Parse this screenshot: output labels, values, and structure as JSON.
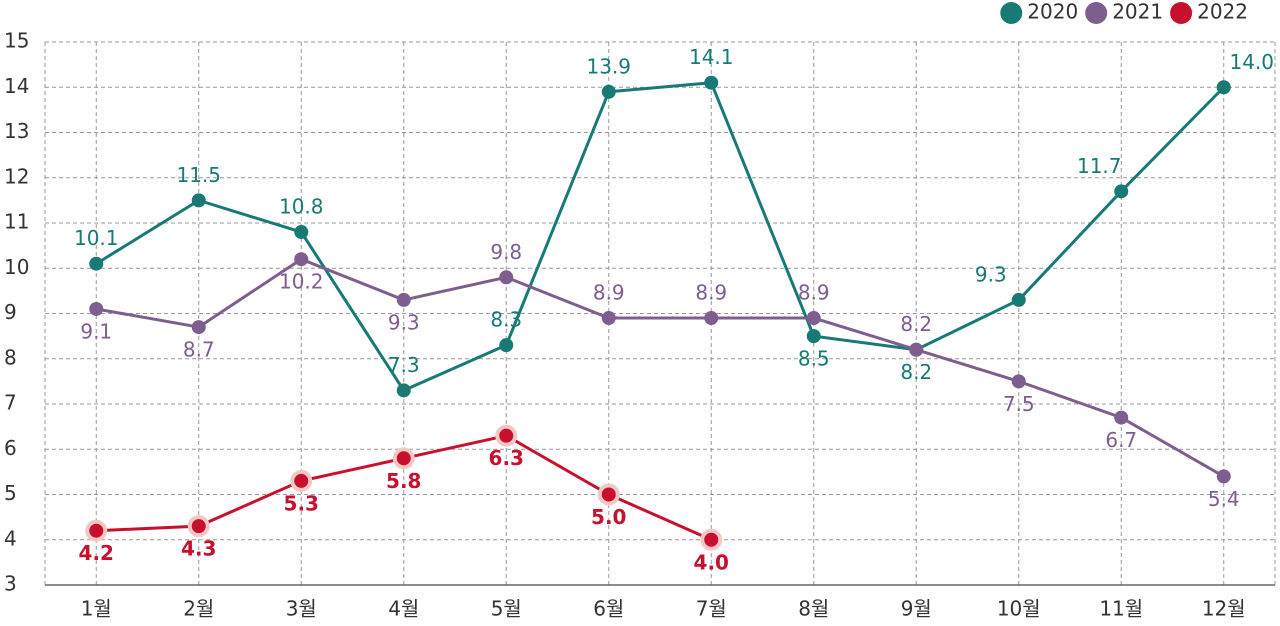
{
  "chart_data": {
    "type": "line",
    "categories": [
      "1월",
      "2월",
      "3월",
      "4월",
      "5월",
      "6월",
      "7월",
      "8월",
      "9월",
      "10월",
      "11월",
      "12월"
    ],
    "series": [
      {
        "name": "2020",
        "color": "#177a74",
        "values": [
          10.1,
          11.5,
          10.8,
          7.3,
          8.3,
          13.9,
          14.1,
          8.5,
          8.2,
          9.3,
          11.7,
          14.0
        ],
        "value_labels": [
          "10.1",
          "11.5",
          "10.8",
          "7.3",
          "8.3",
          "13.9",
          "14.1",
          "8.5",
          "8.2",
          "9.3",
          "11.7",
          "14.0"
        ]
      },
      {
        "name": "2021",
        "color": "#7d5e8e",
        "values": [
          9.1,
          8.7,
          10.2,
          9.3,
          9.8,
          8.9,
          8.9,
          8.9,
          8.2,
          7.5,
          6.7,
          5.4
        ],
        "value_labels": [
          "9.1",
          "8.7",
          "10.2",
          "9.3",
          "9.8",
          "8.9",
          "8.9",
          "8.9",
          "8.2",
          "7.5",
          "6.7",
          "5.4"
        ]
      },
      {
        "name": "2022",
        "color": "#c8102e",
        "values": [
          4.2,
          4.3,
          5.3,
          5.8,
          6.3,
          5.0,
          4.0,
          null,
          null,
          null,
          null,
          null
        ],
        "value_labels": [
          "4.2",
          "4.3",
          "5.3",
          "5.8",
          "6.3",
          "5.0",
          "4.0",
          null,
          null,
          null,
          null,
          null
        ]
      }
    ],
    "ylim": [
      3,
      15
    ],
    "yticks": [
      3,
      4,
      5,
      6,
      7,
      8,
      9,
      10,
      11,
      12,
      13,
      14,
      15
    ],
    "grid": true,
    "legend": "top-right"
  }
}
